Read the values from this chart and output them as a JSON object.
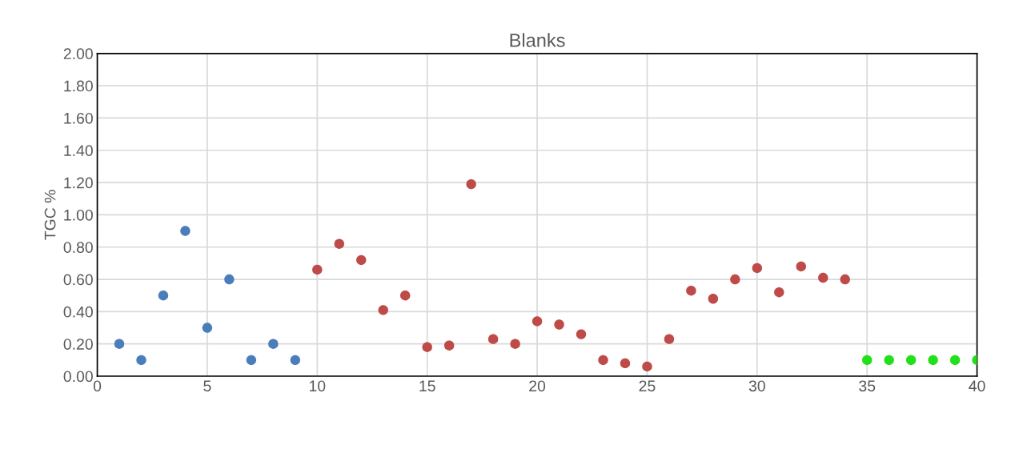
{
  "chart_data": {
    "type": "scatter",
    "title": "Blanks",
    "ylabel": "TGC %",
    "marker": "circle",
    "grid": true,
    "xlim": [
      0,
      40
    ],
    "xticks": [
      0,
      5,
      10,
      15,
      20,
      25,
      30,
      35,
      40
    ],
    "ylim": [
      0,
      2
    ],
    "yticks": [
      {
        "value": 0,
        "label": "0.00"
      },
      {
        "value": 0.2,
        "label": "0.20"
      },
      {
        "value": 0.4,
        "label": "0.40"
      },
      {
        "value": 0.6,
        "label": "0.60"
      },
      {
        "value": 0.8,
        "label": "0.80"
      },
      {
        "value": 1.0,
        "label": "1.00"
      },
      {
        "value": 1.2,
        "label": "1.20"
      },
      {
        "value": 1.4,
        "label": "1.40"
      },
      {
        "value": 1.6,
        "label": "1.60"
      },
      {
        "value": 1.8,
        "label": "1.80"
      },
      {
        "value": 2.0,
        "label": "2.00"
      }
    ],
    "series": [
      {
        "color": "#4a7ebb",
        "x": [
          1,
          2,
          3,
          4,
          5,
          6,
          7,
          8,
          9
        ],
        "values": [
          0.2,
          0.1,
          0.5,
          0.9,
          0.3,
          0.6,
          0.1,
          0.2,
          0.1
        ]
      },
      {
        "color": "#be4b48",
        "x": [
          10,
          11,
          12,
          13,
          14,
          15,
          16,
          17,
          18,
          19,
          20,
          21,
          22,
          23,
          24,
          25,
          26,
          27,
          28,
          29,
          30,
          31,
          32,
          33,
          34
        ],
        "values": [
          0.66,
          0.82,
          0.72,
          0.41,
          0.5,
          0.18,
          0.19,
          1.19,
          0.23,
          0.2,
          0.34,
          0.32,
          0.26,
          0.1,
          0.08,
          0.06,
          0.23,
          0.53,
          0.48,
          0.6,
          0.67,
          0.52,
          0.68,
          0.61,
          0.6
        ]
      },
      {
        "color": "#22e01a",
        "x": [
          35,
          36,
          37,
          38,
          39,
          40
        ],
        "values": [
          0.1,
          0.1,
          0.1,
          0.1,
          0.1,
          0.1
        ]
      }
    ]
  }
}
